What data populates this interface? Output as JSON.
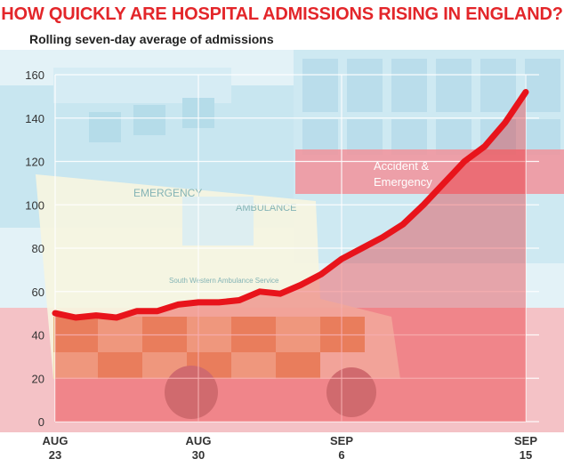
{
  "title": "HOW QUICKLY ARE HOSPITAL ADMISSIONS RISING IN ENGLAND?",
  "subtitle": "Rolling seven-day average of admissions",
  "photo_text": {
    "sign_line1": "Accident &",
    "sign_line2": "Emergency",
    "ambulance_top": "EMERGENCY",
    "ambulance_side": "AMBULANCE",
    "ambulance_service": "South Western Ambulance Service"
  },
  "colors": {
    "accent": "#e3262a",
    "line": "#e8141b",
    "grid": "#ffffff"
  },
  "chart_data": {
    "type": "line",
    "title": "HOW QUICKLY ARE HOSPITAL ADMISSIONS RISING IN ENGLAND?",
    "subtitle": "Rolling seven-day average of admissions",
    "xlabel": "",
    "ylabel": "",
    "ylim": [
      0,
      160
    ],
    "yticks": [
      0,
      20,
      40,
      60,
      80,
      100,
      120,
      140,
      160
    ],
    "xlim": [
      0,
      23
    ],
    "xticks": [
      {
        "x": 0,
        "line1": "AUG",
        "line2": "23"
      },
      {
        "x": 7,
        "line1": "AUG",
        "line2": "30"
      },
      {
        "x": 14,
        "line1": "SEP",
        "line2": "6"
      },
      {
        "x": 23,
        "line1": "SEP",
        "line2": "15"
      }
    ],
    "grid": true,
    "series": [
      {
        "x": [
          0,
          1,
          2,
          3,
          4,
          5,
          6,
          7,
          8,
          9,
          10,
          11,
          12,
          13,
          14,
          15,
          16,
          17,
          18,
          19,
          20,
          21,
          22,
          23
        ],
        "values": [
          50,
          48,
          49,
          48,
          51,
          51,
          54,
          55,
          55,
          56,
          60,
          59,
          63,
          68,
          75,
          80,
          85,
          91,
          100,
          110,
          120,
          127,
          138,
          152
        ]
      }
    ]
  }
}
